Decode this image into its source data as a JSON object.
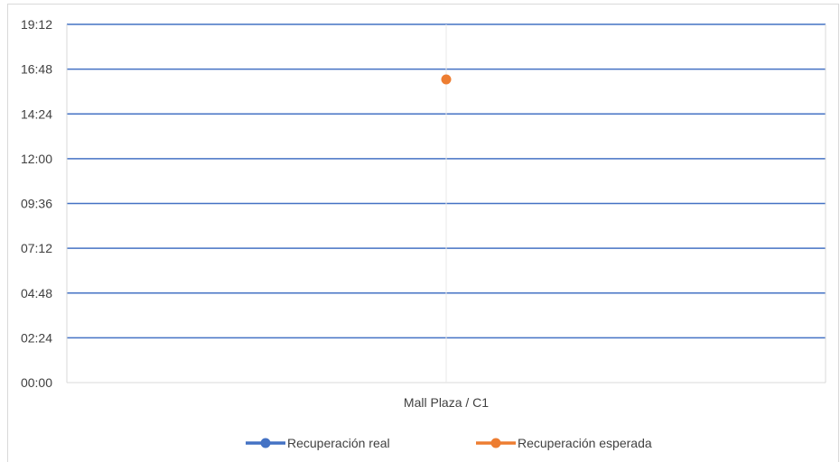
{
  "chart_data": {
    "type": "line",
    "title": "",
    "xlabel": "",
    "ylabel": "",
    "categories": [
      "Mall Plaza / C1"
    ],
    "y_ticks": [
      "00:00",
      "02:24",
      "04:48",
      "07:12",
      "09:36",
      "12:00",
      "14:24",
      "16:48",
      "19:12"
    ],
    "ylim": [
      "00:00",
      "19:12"
    ],
    "grid": true,
    "legend_position": "bottom",
    "series": [
      {
        "name": "Recuperación real",
        "color": "#4472c4",
        "values": [
          null
        ]
      },
      {
        "name": "Recuperación esperada",
        "color": "#ed7d31",
        "values": [
          "16:15"
        ]
      }
    ]
  }
}
